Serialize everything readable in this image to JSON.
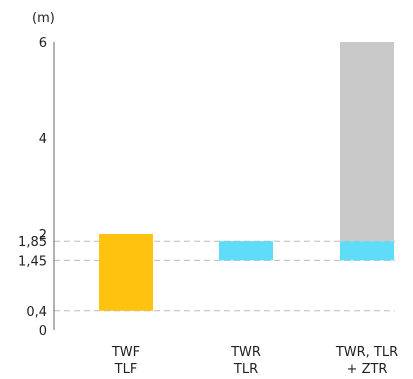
{
  "chart_data": {
    "type": "bar",
    "unit_label": "(m)",
    "ylim": [
      0,
      6
    ],
    "y_ticks": [
      {
        "value": 0,
        "label": "0"
      },
      {
        "value": 0.4,
        "label": "0,4"
      },
      {
        "value": 1.45,
        "label": "1,45"
      },
      {
        "value": 1.85,
        "label": "1,85"
      },
      {
        "value": 2,
        "label": "2"
      },
      {
        "value": 4,
        "label": "4"
      },
      {
        "value": 6,
        "label": "6"
      }
    ],
    "reference_lines": [
      0.4,
      1.45,
      1.85
    ],
    "categories": [
      {
        "lines": [
          "TWF",
          "TLF"
        ]
      },
      {
        "lines": [
          "TWR",
          "TLR"
        ]
      },
      {
        "lines": [
          "TWR, TLR",
          "+ ZTR"
        ]
      }
    ],
    "bars": [
      {
        "category": 0,
        "from": 0.4,
        "to": 2.0,
        "color": "#ffc20e"
      },
      {
        "category": 1,
        "from": 1.45,
        "to": 1.85,
        "color": "#5fdcf8"
      },
      {
        "category": 2,
        "from": 1.45,
        "to": 1.85,
        "color": "#5fdcf8"
      },
      {
        "category": 2,
        "from": 1.85,
        "to": 6.0,
        "color": "#c8c8c8"
      }
    ],
    "grid": false,
    "colors": {
      "axis": "#666666",
      "dashed": "#bbbbbb",
      "text": "#222222"
    }
  }
}
